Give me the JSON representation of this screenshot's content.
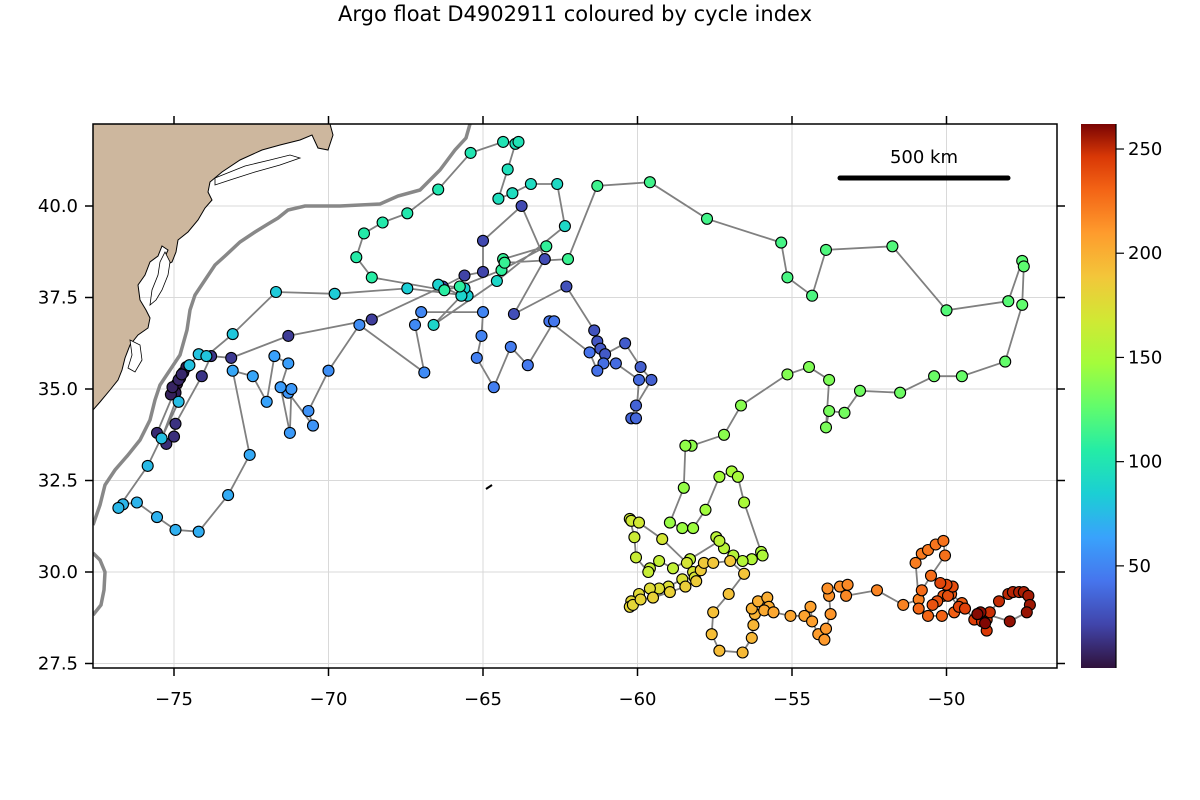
{
  "chart_data": {
    "type": "scatter",
    "title": "Argo float D4902911 coloured by cycle index",
    "xlabel": "",
    "ylabel": "",
    "xlim": [
      -77.6,
      -46.4
    ],
    "ylim": [
      27.4,
      42.25
    ],
    "x_ticks": [
      -75,
      -70,
      -65,
      -60,
      -55,
      -50
    ],
    "x_tick_labels": [
      "−75",
      "−70",
      "−65",
      "−60",
      "−55",
      "−50"
    ],
    "y_ticks": [
      27.5,
      30.0,
      32.5,
      35.0,
      37.5,
      40.0
    ],
    "y_tick_labels": [
      "27.5",
      "30.0",
      "32.5",
      "35.0",
      "37.5",
      "40.0"
    ],
    "grid": true,
    "colorbar": {
      "label": "",
      "range": [
        1,
        262
      ],
      "ticks": [
        50,
        100,
        150,
        200,
        250
      ],
      "tick_labels": [
        "50",
        "100",
        "150",
        "200",
        "250"
      ],
      "colormap": "turbo"
    },
    "scale_bar": {
      "label": "500 km",
      "lon_start": -53.35,
      "lon_end": -47.85,
      "lat": 40.75
    },
    "land_color": "#cdb79e",
    "track_color": "#808080",
    "isobath_color": "#888888",
    "points": [
      [
        -75.0,
        35.0,
        1
      ],
      [
        -74.9,
        35.15,
        2
      ],
      [
        -74.8,
        35.3,
        3
      ],
      [
        -74.7,
        35.45,
        4
      ],
      [
        -74.6,
        35.6,
        5
      ],
      [
        -74.95,
        34.9,
        6
      ],
      [
        -75.1,
        34.85,
        7
      ],
      [
        -75.05,
        35.05,
        8
      ],
      [
        -74.85,
        35.25,
        9
      ],
      [
        -74.75,
        35.4,
        10
      ],
      [
        -75.55,
        33.8,
        11
      ],
      [
        -75.25,
        33.5,
        12
      ],
      [
        -75.0,
        33.7,
        13
      ],
      [
        -74.95,
        34.05,
        14
      ],
      [
        -74.1,
        35.35,
        15
      ],
      [
        -73.8,
        35.9,
        16
      ],
      [
        -73.15,
        35.85,
        17
      ],
      [
        -71.3,
        36.45,
        18
      ],
      [
        -68.6,
        36.9,
        19
      ],
      [
        -66.3,
        37.8,
        20
      ],
      [
        -65.6,
        38.1,
        21
      ],
      [
        -65.0,
        38.2,
        22
      ],
      [
        -65.0,
        39.05,
        23
      ],
      [
        -63.75,
        40.0,
        24
      ],
      [
        -63.0,
        38.55,
        25
      ],
      [
        -64.0,
        37.05,
        26
      ],
      [
        -62.3,
        37.8,
        27
      ],
      [
        -61.4,
        36.6,
        28
      ],
      [
        -61.3,
        36.3,
        29
      ],
      [
        -61.2,
        36.1,
        30
      ],
      [
        -61.05,
        35.95,
        31
      ],
      [
        -60.4,
        36.25,
        32
      ],
      [
        -59.9,
        35.6,
        33
      ],
      [
        -59.55,
        35.25,
        34
      ],
      [
        -60.05,
        34.55,
        35
      ],
      [
        -60.2,
        34.2,
        36
      ],
      [
        -60.05,
        34.2,
        37
      ],
      [
        -59.95,
        35.25,
        38
      ],
      [
        -60.7,
        35.7,
        39
      ],
      [
        -61.1,
        35.7,
        40
      ],
      [
        -61.3,
        35.5,
        41
      ],
      [
        -61.55,
        36.0,
        42
      ],
      [
        -62.85,
        36.85,
        43
      ],
      [
        -62.7,
        36.85,
        44
      ],
      [
        -63.55,
        35.65,
        45
      ],
      [
        -64.1,
        36.15,
        46
      ],
      [
        -64.65,
        35.05,
        47
      ],
      [
        -65.2,
        35.85,
        48
      ],
      [
        -65.05,
        36.45,
        49
      ],
      [
        -65.0,
        37.1,
        50
      ],
      [
        -67.0,
        37.1,
        51
      ],
      [
        -67.2,
        36.75,
        52
      ],
      [
        -66.9,
        35.45,
        53
      ],
      [
        -69.0,
        36.75,
        54
      ],
      [
        -70.0,
        35.5,
        55
      ],
      [
        -70.65,
        34.4,
        56
      ],
      [
        -70.5,
        34.0,
        57
      ],
      [
        -71.3,
        34.9,
        58
      ],
      [
        -71.2,
        35.0,
        59
      ],
      [
        -71.25,
        33.8,
        60
      ],
      [
        -71.55,
        35.05,
        61
      ],
      [
        -71.3,
        35.7,
        62
      ],
      [
        -71.75,
        35.9,
        63
      ],
      [
        -72.0,
        34.65,
        64
      ],
      [
        -72.45,
        35.35,
        65
      ],
      [
        -73.1,
        35.5,
        66
      ],
      [
        -72.55,
        33.2,
        67
      ],
      [
        -73.25,
        32.1,
        68
      ],
      [
        -74.2,
        31.1,
        69
      ],
      [
        -74.95,
        31.15,
        70
      ],
      [
        -75.55,
        31.5,
        71
      ],
      [
        -76.2,
        31.9,
        72
      ],
      [
        -76.65,
        31.85,
        73
      ],
      [
        -76.8,
        31.75,
        74
      ],
      [
        -75.85,
        32.9,
        75
      ],
      [
        -74.85,
        34.65,
        76
      ],
      [
        -75.4,
        33.65,
        77
      ],
      [
        -74.5,
        35.65,
        78
      ],
      [
        -74.2,
        35.95,
        79
      ],
      [
        -73.95,
        35.9,
        80
      ],
      [
        -73.1,
        36.5,
        81
      ],
      [
        -71.7,
        37.65,
        82
      ],
      [
        -69.8,
        37.6,
        83
      ],
      [
        -67.45,
        37.75,
        84
      ],
      [
        -65.5,
        37.55,
        85
      ],
      [
        -65.6,
        37.75,
        86
      ],
      [
        -66.45,
        37.85,
        87
      ],
      [
        -65.7,
        37.55,
        88
      ],
      [
        -66.6,
        36.75,
        89
      ],
      [
        -64.55,
        37.95,
        90
      ],
      [
        -62.35,
        39.45,
        91
      ],
      [
        -62.6,
        40.6,
        92
      ],
      [
        -63.45,
        40.6,
        93
      ],
      [
        -64.05,
        40.35,
        94
      ],
      [
        -64.5,
        40.2,
        95
      ],
      [
        -64.2,
        41.0,
        96
      ],
      [
        -63.95,
        41.7,
        97
      ],
      [
        -63.85,
        41.75,
        98
      ],
      [
        -64.35,
        41.75,
        99
      ],
      [
        -65.4,
        41.45,
        100
      ],
      [
        -66.45,
        40.45,
        101
      ],
      [
        -67.45,
        39.8,
        102
      ],
      [
        -68.25,
        39.55,
        103
      ],
      [
        -68.85,
        39.25,
        104
      ],
      [
        -69.1,
        38.6,
        105
      ],
      [
        -68.6,
        38.05,
        106
      ],
      [
        -66.25,
        37.7,
        107
      ],
      [
        -65.75,
        37.8,
        108
      ],
      [
        -64.4,
        38.25,
        109
      ],
      [
        -62.95,
        38.9,
        110
      ],
      [
        -64.35,
        38.55,
        111
      ],
      [
        -64.3,
        38.45,
        112
      ],
      [
        -62.25,
        38.55,
        113
      ],
      [
        -61.3,
        40.55,
        114
      ],
      [
        -59.6,
        40.65,
        115
      ],
      [
        -57.75,
        39.65,
        116
      ],
      [
        -55.35,
        39.0,
        117
      ],
      [
        -55.15,
        38.05,
        118
      ],
      [
        -54.35,
        37.55,
        119
      ],
      [
        -53.9,
        38.8,
        120
      ],
      [
        -51.75,
        38.9,
        121
      ],
      [
        -50.0,
        37.15,
        122
      ],
      [
        -48.0,
        37.4,
        123
      ],
      [
        -47.55,
        38.5,
        124
      ],
      [
        -47.5,
        38.35,
        125
      ],
      [
        -47.55,
        37.3,
        126
      ],
      [
        -48.1,
        35.75,
        127
      ],
      [
        -49.5,
        35.35,
        128
      ],
      [
        -50.4,
        35.35,
        129
      ],
      [
        -51.5,
        34.9,
        130
      ],
      [
        -52.8,
        34.95,
        131
      ],
      [
        -53.3,
        34.35,
        132
      ],
      [
        -53.8,
        34.4,
        133
      ],
      [
        -53.9,
        33.95,
        134
      ],
      [
        -53.8,
        35.25,
        135
      ],
      [
        -54.45,
        35.6,
        136
      ],
      [
        -55.15,
        35.4,
        137
      ],
      [
        -56.65,
        34.55,
        138
      ],
      [
        -57.2,
        33.75,
        139
      ],
      [
        -58.25,
        33.45,
        140
      ],
      [
        -58.45,
        33.45,
        141
      ],
      [
        -58.5,
        32.3,
        142
      ],
      [
        -58.95,
        31.35,
        143
      ],
      [
        -58.55,
        31.2,
        144
      ],
      [
        -58.2,
        31.2,
        145
      ],
      [
        -57.8,
        31.7,
        146
      ],
      [
        -57.35,
        32.6,
        147
      ],
      [
        -56.95,
        32.75,
        148
      ],
      [
        -56.75,
        32.6,
        149
      ],
      [
        -56.55,
        31.9,
        150
      ],
      [
        -56.0,
        30.55,
        151
      ],
      [
        -55.95,
        30.45,
        152
      ],
      [
        -56.3,
        30.35,
        153
      ],
      [
        -56.6,
        30.3,
        154
      ],
      [
        -56.9,
        30.45,
        155
      ],
      [
        -57.2,
        30.65,
        156
      ],
      [
        -57.45,
        30.95,
        157
      ],
      [
        -57.35,
        30.85,
        158
      ],
      [
        -58.3,
        30.35,
        159
      ],
      [
        -58.85,
        30.1,
        160
      ],
      [
        -59.3,
        30.3,
        161
      ],
      [
        -59.6,
        30.1,
        162
      ],
      [
        -59.65,
        30.0,
        163
      ],
      [
        -60.05,
        30.4,
        164
      ],
      [
        -60.1,
        30.95,
        165
      ],
      [
        -60.25,
        31.45,
        166
      ],
      [
        -60.2,
        31.4,
        167
      ],
      [
        -59.95,
        31.35,
        168
      ],
      [
        -59.2,
        30.9,
        169
      ],
      [
        -58.4,
        30.25,
        170
      ],
      [
        -58.2,
        30.0,
        171
      ],
      [
        -58.15,
        29.85,
        172
      ],
      [
        -58.55,
        29.8,
        173
      ],
      [
        -59.0,
        29.6,
        174
      ],
      [
        -59.3,
        29.55,
        175
      ],
      [
        -59.6,
        29.55,
        176
      ],
      [
        -59.95,
        29.4,
        177
      ],
      [
        -60.2,
        29.2,
        178
      ],
      [
        -60.25,
        29.05,
        179
      ],
      [
        -60.15,
        29.1,
        180
      ],
      [
        -59.9,
        29.25,
        181
      ],
      [
        -59.5,
        29.3,
        182
      ],
      [
        -58.95,
        29.45,
        183
      ],
      [
        -58.45,
        29.6,
        184
      ],
      [
        -58.1,
        29.75,
        185
      ],
      [
        -57.95,
        30.05,
        186
      ],
      [
        -57.85,
        30.25,
        187
      ],
      [
        -57.55,
        30.25,
        188
      ],
      [
        -57.0,
        30.3,
        189
      ],
      [
        -56.55,
        29.95,
        190
      ],
      [
        -57.05,
        29.4,
        191
      ],
      [
        -57.55,
        28.9,
        192
      ],
      [
        -57.6,
        28.3,
        193
      ],
      [
        -57.35,
        27.85,
        194
      ],
      [
        -56.6,
        27.8,
        195
      ],
      [
        -56.3,
        28.2,
        196
      ],
      [
        -56.25,
        28.55,
        197
      ],
      [
        -56.2,
        28.85,
        198
      ],
      [
        -56.3,
        29.0,
        199
      ],
      [
        -56.1,
        29.2,
        200
      ],
      [
        -55.8,
        29.3,
        201
      ],
      [
        -55.75,
        29.05,
        202
      ],
      [
        -55.9,
        28.95,
        203
      ],
      [
        -55.6,
        28.9,
        204
      ],
      [
        -55.05,
        28.8,
        205
      ],
      [
        -54.6,
        28.8,
        206
      ],
      [
        -54.4,
        29.05,
        207
      ],
      [
        -54.35,
        28.65,
        208
      ],
      [
        -54.15,
        28.3,
        209
      ],
      [
        -53.95,
        28.15,
        210
      ],
      [
        -53.9,
        28.45,
        211
      ],
      [
        -53.75,
        28.85,
        212
      ],
      [
        -53.8,
        29.35,
        213
      ],
      [
        -53.85,
        29.55,
        214
      ],
      [
        -53.45,
        29.6,
        215
      ],
      [
        -53.2,
        29.65,
        216
      ],
      [
        -53.25,
        29.35,
        217
      ],
      [
        -52.25,
        29.5,
        218
      ],
      [
        -51.4,
        29.1,
        219
      ],
      [
        -50.9,
        29.25,
        220
      ],
      [
        -51.0,
        30.25,
        221
      ],
      [
        -50.8,
        30.5,
        222
      ],
      [
        -50.6,
        30.6,
        223
      ],
      [
        -50.35,
        30.75,
        224
      ],
      [
        -50.1,
        30.85,
        225
      ],
      [
        -50.05,
        30.45,
        226
      ],
      [
        -50.5,
        29.9,
        227
      ],
      [
        -50.8,
        29.5,
        228
      ],
      [
        -50.9,
        29.0,
        229
      ],
      [
        -50.6,
        28.8,
        230
      ],
      [
        -50.15,
        28.8,
        231
      ],
      [
        -49.75,
        28.9,
        232
      ],
      [
        -49.5,
        29.15,
        233
      ],
      [
        -49.85,
        29.4,
        234
      ],
      [
        -50.1,
        29.35,
        235
      ],
      [
        -50.3,
        29.2,
        236
      ],
      [
        -50.45,
        29.1,
        237
      ],
      [
        -49.95,
        29.35,
        238
      ],
      [
        -49.8,
        29.6,
        239
      ],
      [
        -50.0,
        29.65,
        240
      ],
      [
        -50.2,
        29.7,
        241
      ],
      [
        -49.6,
        29.05,
        242
      ],
      [
        -49.4,
        29.0,
        243
      ],
      [
        -49.1,
        28.7,
        244
      ],
      [
        -48.7,
        28.7,
        245
      ],
      [
        -48.7,
        28.4,
        246
      ],
      [
        -48.85,
        28.65,
        247
      ],
      [
        -49.0,
        28.85,
        248
      ],
      [
        -48.6,
        28.9,
        249
      ],
      [
        -48.3,
        29.2,
        250
      ],
      [
        -48.0,
        29.4,
        251
      ],
      [
        -47.85,
        29.45,
        252
      ],
      [
        -47.65,
        29.45,
        253
      ],
      [
        -47.5,
        29.45,
        254
      ],
      [
        -47.35,
        29.35,
        255
      ],
      [
        -47.3,
        29.1,
        256
      ],
      [
        -47.4,
        28.9,
        257
      ],
      [
        -47.95,
        28.65,
        258
      ],
      [
        -48.9,
        28.9,
        259
      ],
      [
        -49.0,
        28.85,
        260
      ],
      [
        -48.75,
        28.6,
        261
      ]
    ]
  }
}
